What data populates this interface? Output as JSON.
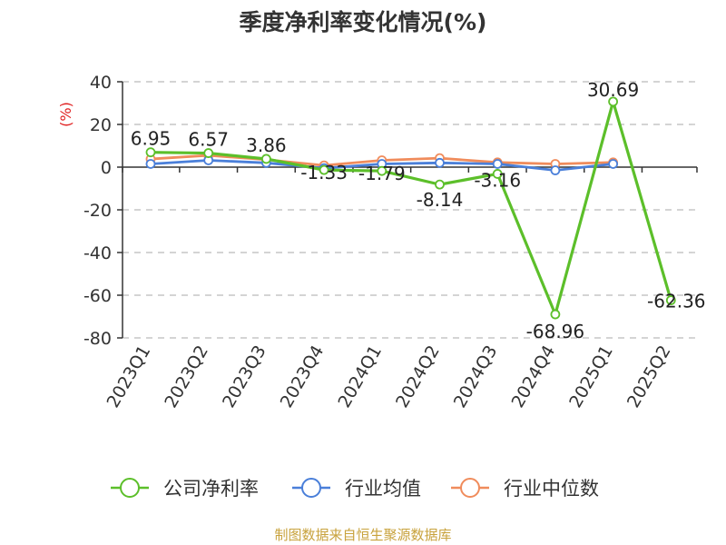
{
  "chart_data": {
    "type": "line",
    "title": "季度净利率变化情况(%)",
    "ylabel": "(%)",
    "xlabel": "",
    "categories": [
      "2023Q1",
      "2023Q2",
      "2023Q3",
      "2023Q4",
      "2024Q1",
      "2024Q2",
      "2024Q3",
      "2024Q4",
      "2025Q1",
      "2025Q2"
    ],
    "ylim": [
      -80,
      40
    ],
    "yticks": [
      40,
      20,
      0,
      -20,
      -40,
      -60,
      -80
    ],
    "grid": true,
    "legend_position": "bottom",
    "series": [
      {
        "name": "公司净利率",
        "color": "#5cbf2a",
        "values": [
          6.95,
          6.57,
          3.86,
          -1.33,
          -1.79,
          -8.14,
          -3.16,
          -68.96,
          30.69,
          -62.36
        ],
        "data_labels": [
          "6.95",
          "6.57",
          "3.86",
          "-1.33",
          "-1.79",
          "-8.14",
          "-3.16",
          "-68.96",
          "30.69",
          "-62.36"
        ]
      },
      {
        "name": "行业均值",
        "color": "#4a7fd9",
        "values": [
          1.5,
          3.2,
          2.0,
          -0.5,
          1.5,
          2.0,
          1.5,
          -1.5,
          1.5,
          null
        ]
      },
      {
        "name": "行业中位数",
        "color": "#f08c5c",
        "values": [
          3.8,
          5.5,
          3.5,
          0.8,
          3.2,
          4.2,
          2.2,
          1.5,
          2.2,
          null
        ]
      }
    ]
  },
  "source": "制图数据来自恒生聚源数据库",
  "colors": {
    "axis": "#333333",
    "grid": "#bbbbbb",
    "ylabel": "#e02020",
    "source": "#c8a23c",
    "title": "#333333"
  }
}
